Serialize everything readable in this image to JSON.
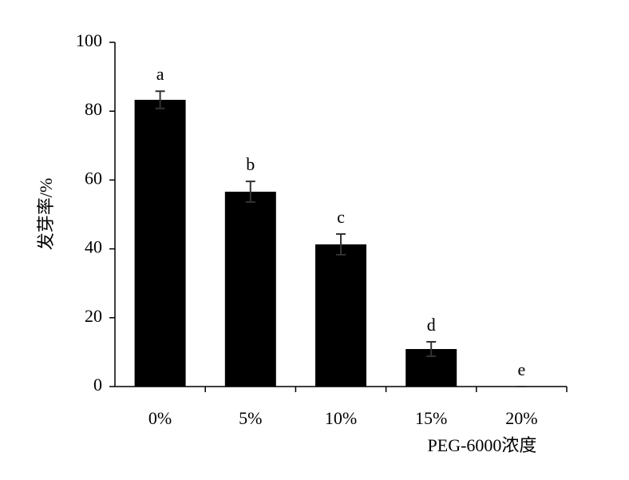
{
  "chart_data": {
    "type": "bar",
    "y_label": "发芽率/%",
    "x_label": "PEG-6000浓度",
    "categories": [
      "0%",
      "5%",
      "10%",
      "15%",
      "20%"
    ],
    "values": [
      83.3,
      56.6,
      41.3,
      10.9,
      0
    ],
    "errors": [
      2.5,
      3,
      3,
      2.1,
      0
    ],
    "letters": [
      "a",
      "b",
      "c",
      "d",
      "e"
    ],
    "color": "#000000",
    "error_color": "#333333",
    "ylim": [
      0,
      100
    ],
    "yticks": [
      0,
      20,
      40,
      60,
      80,
      100
    ],
    "grid": false
  }
}
